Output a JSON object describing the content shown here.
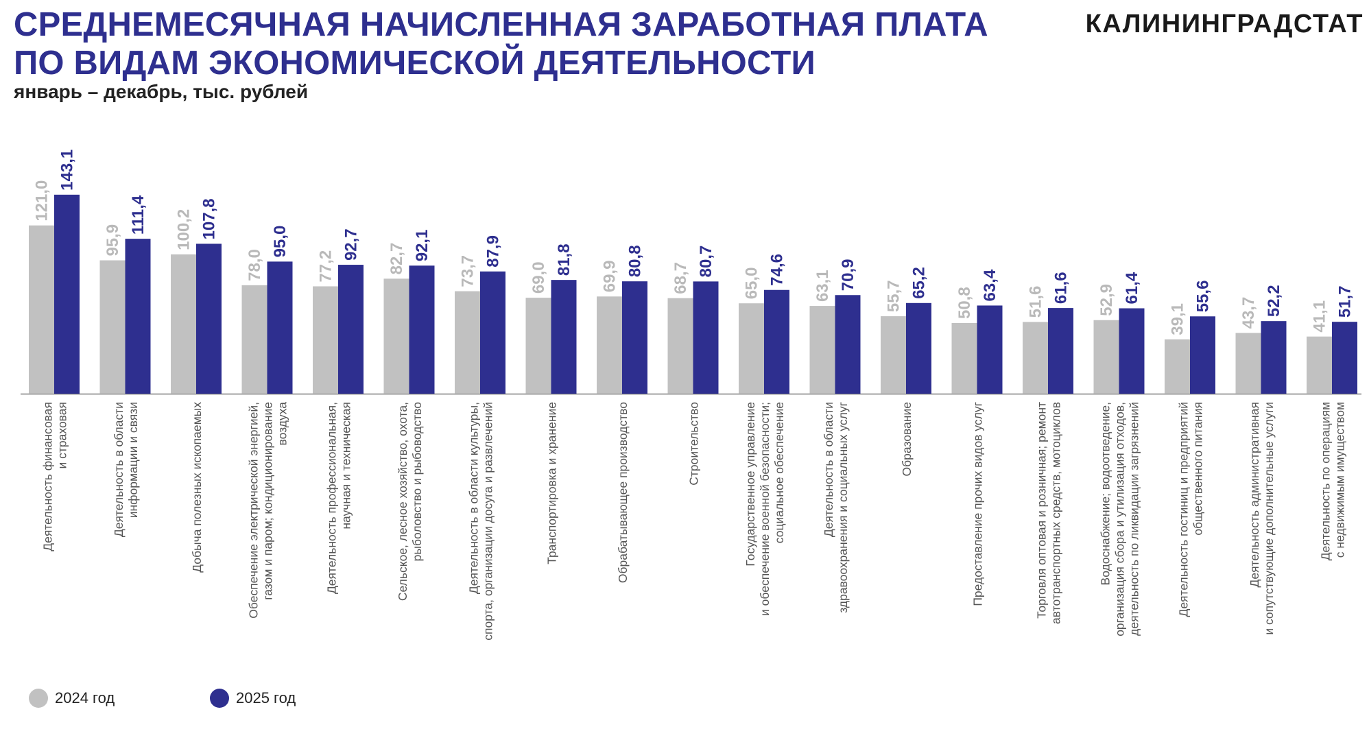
{
  "header": {
    "title_line1": "СРЕДНЕМЕСЯЧНАЯ НАЧИСЛЕННАЯ ЗАРАБОТНАЯ ПЛАТА",
    "title_line2": "ПО ВИДАМ ЭКОНОМИЧЕСКОЙ ДЕЯТЕЛЬНОСТИ",
    "subtitle": "январь – декабрь, тыс. рублей",
    "brand": "КАЛИНИНГРАДСТАТ"
  },
  "colors": {
    "series_2024": "#c1c1c1",
    "series_2025": "#2e2f8f",
    "title": "#2e2f8f",
    "category_text": "#555555"
  },
  "legend": [
    {
      "label": "2024 год",
      "color": "#c1c1c1"
    },
    {
      "label": "2025 год",
      "color": "#2e2f8f"
    }
  ],
  "chart_data": {
    "type": "bar",
    "title": "СРЕДНЕМЕСЯЧНАЯ НАЧИСЛЕННАЯ ЗАРАБОТНАЯ ПЛАТА ПО ВИДАМ ЭКОНОМИЧЕСКОЙ ДЕЯТЕЛЬНОСТИ",
    "subtitle": "январь – декабрь, тыс. рублей",
    "ylim": [
      0,
      145
    ],
    "grid": false,
    "legend_position": "bottom-left",
    "categories": [
      [
        "Деятельность финансовая",
        "и страховая"
      ],
      [
        "Деятельность в области",
        "информации и связи"
      ],
      [
        "Добыча полезных ископаемых"
      ],
      [
        "Обеспечение электрической энергией,",
        "газом и паром; кондиционирование",
        "воздуха"
      ],
      [
        "Деятельность профессиональная,",
        "научная и техническая"
      ],
      [
        "Сельское, лесное хозяйство, охота,",
        "рыболовство и рыбоводство"
      ],
      [
        "Деятельность в области культуры,",
        "спорта, организации досуга и развлечений"
      ],
      [
        "Транспортировка и хранение"
      ],
      [
        "Обрабатывающее производство"
      ],
      [
        "Строительство"
      ],
      [
        "Государственное управление",
        "и обеспечение военной безопасности;",
        "социальное обеспечение"
      ],
      [
        "Деятельность в области",
        "здравоохранения и социальных услуг"
      ],
      [
        "Образование"
      ],
      [
        "Предоставление прочих видов услуг"
      ],
      [
        "Торговля оптовая и розничная; ремонт",
        "автотранспортных средств, мотоциклов"
      ],
      [
        "Водоснабжение; водоотведение,",
        "организация сбора и утилизация отходов,",
        "деятельность по ликвидации загрязнений"
      ],
      [
        "Деятельность гостиниц и предприятий",
        "общественного питания"
      ],
      [
        "Деятельность административная",
        "и сопутствующие дополнительные услуги"
      ],
      [
        "Деятельность по операциям",
        "с недвижимым имуществом"
      ]
    ],
    "series": [
      {
        "name": "2024 год",
        "color": "#c1c1c1",
        "values": [
          121.0,
          95.9,
          100.2,
          78.0,
          77.2,
          82.7,
          73.7,
          69.0,
          69.9,
          68.7,
          65.0,
          63.1,
          55.7,
          50.8,
          51.6,
          52.9,
          39.1,
          43.7,
          41.1
        ],
        "labels": [
          "121,0",
          "95,9",
          "100,2",
          "78,0",
          "77,2",
          "82,7",
          "73,7",
          "69,0",
          "69,9",
          "68,7",
          "65,0",
          "63,1",
          "55,7",
          "50,8",
          "51,6",
          "52,9",
          "39,1",
          "43,7",
          "41,1"
        ]
      },
      {
        "name": "2025 год",
        "color": "#2e2f8f",
        "values": [
          143.1,
          111.4,
          107.8,
          95.0,
          92.7,
          92.1,
          87.9,
          81.8,
          80.8,
          80.7,
          74.6,
          70.9,
          65.2,
          63.4,
          61.6,
          61.4,
          55.6,
          52.2,
          51.7
        ],
        "labels": [
          "143,1",
          "111,4",
          "107,8",
          "95,0",
          "92,7",
          "92,1",
          "87,9",
          "81,8",
          "80,8",
          "80,7",
          "74,6",
          "70,9",
          "65,2",
          "63,4",
          "61,6",
          "61,4",
          "55,6",
          "52,2",
          "51,7"
        ]
      }
    ]
  }
}
